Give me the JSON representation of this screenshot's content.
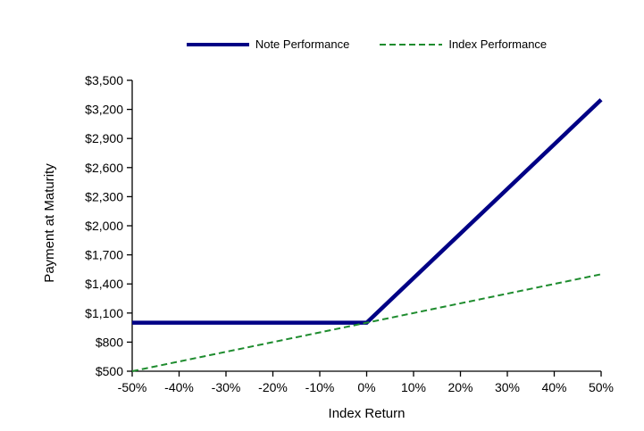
{
  "figure": {
    "background": "#ffffff",
    "axis_color": "#000000"
  },
  "legend": {
    "position": "top-center",
    "items": [
      {
        "label": "Note Performance",
        "swatch_icon": "solid-navy-line"
      },
      {
        "label": "Index Performance",
        "swatch_icon": "dashed-green-line"
      }
    ]
  },
  "chart_data": {
    "type": "line",
    "title": "",
    "xlabel": "Index Return",
    "ylabel": "Payment at Maturity",
    "xlim": [
      -50,
      50
    ],
    "ylim": [
      500,
      3500
    ],
    "grid": false,
    "legend_position": "top-center",
    "x_ticks": [
      -50,
      -40,
      -30,
      -20,
      -10,
      0,
      10,
      20,
      30,
      40,
      50
    ],
    "x_tick_labels": [
      "-50%",
      "-40%",
      "-30%",
      "-20%",
      "-10%",
      "0%",
      "10%",
      "20%",
      "30%",
      "40%",
      "50%"
    ],
    "y_ticks": [
      500,
      800,
      1100,
      1400,
      1700,
      2000,
      2300,
      2600,
      2900,
      3200,
      3500
    ],
    "y_tick_labels": [
      "$500",
      "$800",
      "$1,100",
      "$1,400",
      "$1,700",
      "$2,000",
      "$2,300",
      "$2,600",
      "$2,900",
      "$3,200",
      "$3,500"
    ],
    "series": [
      {
        "name": "Note Performance",
        "color": "#000085",
        "style": "solid",
        "stroke_width": 4.5,
        "points": [
          [
            -50,
            1000
          ],
          [
            0,
            1000
          ],
          [
            50,
            3300
          ]
        ]
      },
      {
        "name": "Index Performance",
        "color": "#1E8C2E",
        "style": "dashed",
        "stroke_width": 2,
        "points": [
          [
            -50,
            500
          ],
          [
            0,
            1000
          ],
          [
            50,
            1500
          ]
        ]
      }
    ]
  }
}
